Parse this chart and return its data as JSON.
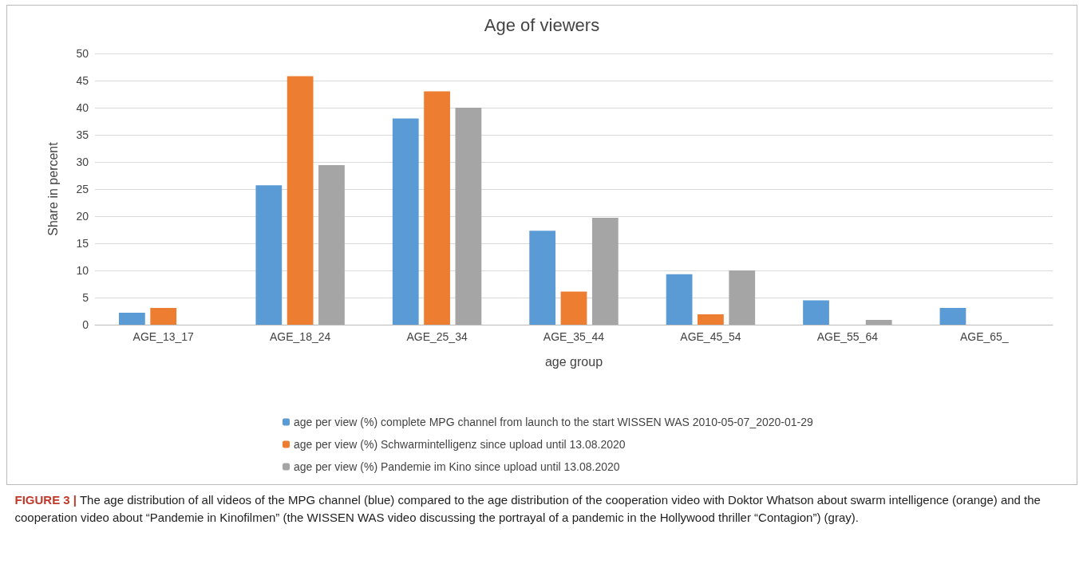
{
  "chart_data": {
    "type": "bar",
    "title": "Age of viewers",
    "xlabel": "age group",
    "ylabel": "Share in percent",
    "categories": [
      "AGE_13_17",
      "AGE_18_24",
      "AGE_25_34",
      "AGE_35_44",
      "AGE_45_54",
      "AGE_55_64",
      "AGE_65_"
    ],
    "series": [
      {
        "name": "age per view (%) complete MPG channel from launch to the start WISSEN WAS 2010-05-07_2020-01-29",
        "color": "#5b9bd5",
        "values": [
          2.2,
          25.7,
          38,
          17.3,
          9.3,
          4.5,
          3.1
        ]
      },
      {
        "name": "age per view (%) Schwarmintelligenz since upload until 13.08.2020",
        "color": "#ed7d31",
        "values": [
          3.1,
          45.8,
          43,
          6.1,
          1.9,
          0,
          0
        ]
      },
      {
        "name": "age per view (%) Pandemie im Kino since upload until 13.08.2020",
        "color": "#a5a5a5",
        "values": [
          0,
          29.4,
          40,
          19.7,
          10,
          0.9,
          0
        ]
      }
    ],
    "ylim": [
      0,
      50
    ],
    "yticks": [
      0,
      5,
      10,
      15,
      20,
      25,
      30,
      35,
      40,
      45,
      50
    ],
    "grid": "y",
    "legend": "bottom",
    "annotations": [
      "FIGURE 3 | The age distribution of all videos of the MPG channel (blue) compared to the age distribution of the cooperation video with Doktor Whatson about swarm intelligence (orange) and the cooperation video about “Pandemie in Kinofilmen” (the WISSEN WAS video discussing the portrayal of a pandemic in the Hollywood thriller “Contagion”) (gray)."
    ]
  }
}
